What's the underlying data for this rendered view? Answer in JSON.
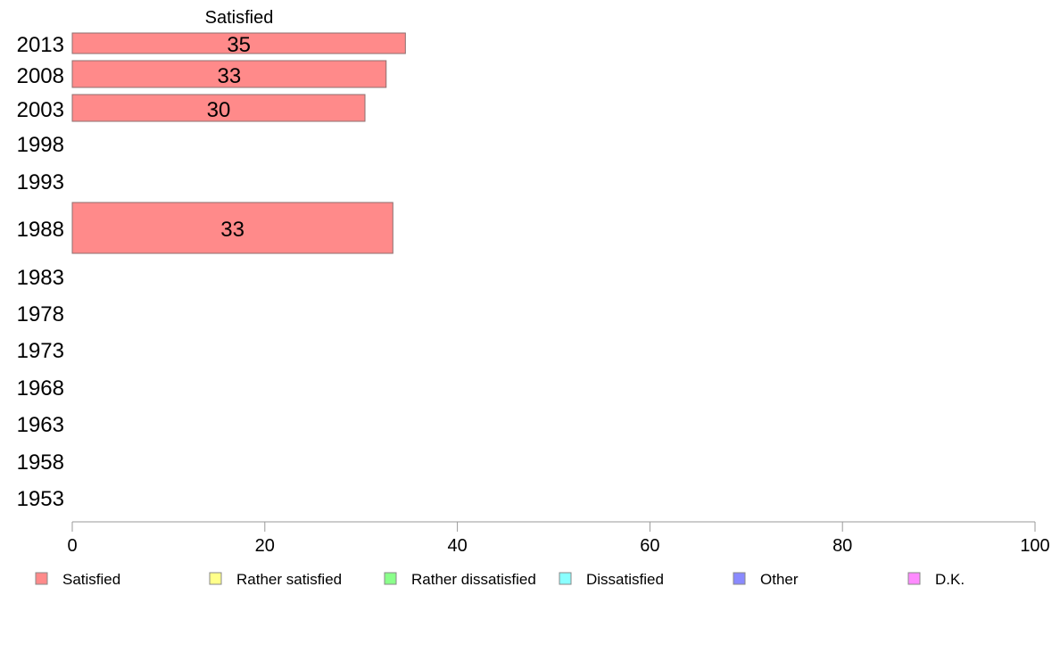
{
  "chart_data": {
    "type": "bar",
    "orientation": "horizontal",
    "categories": [
      "2013",
      "2008",
      "2003",
      "1998",
      "1993",
      "1988",
      "1983",
      "1978",
      "1973",
      "1968",
      "1963",
      "1958",
      "1953"
    ],
    "series_label_top": "Satisfied",
    "series": [
      {
        "name": "Satisfied",
        "color": "#ff8a8a",
        "values": [
          34.6,
          32.6,
          30.4,
          null,
          null,
          33.3,
          null,
          null,
          null,
          null,
          null,
          null,
          null
        ]
      },
      {
        "name": "Rather satisfied",
        "color": "#ffff8a",
        "values": [
          null,
          null,
          null,
          null,
          null,
          null,
          null,
          null,
          null,
          null,
          null,
          null,
          null
        ]
      },
      {
        "name": "Rather dissatisfied",
        "color": "#8aff8a",
        "values": [
          null,
          null,
          null,
          null,
          null,
          null,
          null,
          null,
          null,
          null,
          null,
          null,
          null
        ]
      },
      {
        "name": "Dissatisfied",
        "color": "#8affff",
        "values": [
          null,
          null,
          null,
          null,
          null,
          null,
          null,
          null,
          null,
          null,
          null,
          null,
          null
        ]
      },
      {
        "name": "Other",
        "color": "#8a8aff",
        "values": [
          null,
          null,
          null,
          null,
          null,
          null,
          null,
          null,
          null,
          null,
          null,
          null,
          null
        ]
      },
      {
        "name": "D.K.",
        "color": "#ff8aff",
        "values": [
          null,
          null,
          null,
          null,
          null,
          null,
          null,
          null,
          null,
          null,
          null,
          null,
          null
        ]
      }
    ],
    "data_labels": [
      "35",
      "33",
      "30",
      "",
      "",
      "33",
      "",
      "",
      "",
      "",
      "",
      "",
      ""
    ],
    "xlim": [
      0,
      100
    ],
    "xticks": [
      0,
      20,
      40,
      60,
      80,
      100
    ],
    "xtick_labels": [
      "0",
      "20",
      "40",
      "60",
      "80",
      "100"
    ],
    "xlabel": "",
    "ylabel": "",
    "grid": false,
    "legend_position": "bottom"
  }
}
